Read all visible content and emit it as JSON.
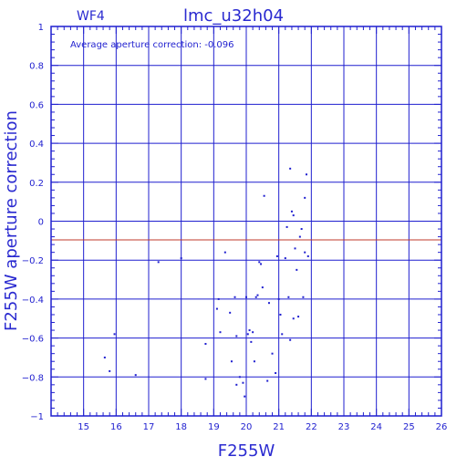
{
  "chart_data": {
    "type": "scatter",
    "title": "lmc_u32h04",
    "panel_label": "WF4",
    "annotation": "Average aperture correction: -0.096",
    "xlabel": "F255W",
    "ylabel": "F255W aperture correction",
    "xlim": [
      14,
      26
    ],
    "ylim": [
      -1,
      1
    ],
    "x_ticks": [
      15,
      16,
      17,
      18,
      19,
      20,
      21,
      22,
      23,
      24,
      25,
      26
    ],
    "y_ticks": [
      -1,
      -0.8,
      -0.6,
      -0.4,
      -0.2,
      0,
      0.2,
      0.4,
      0.6,
      0.8,
      1
    ],
    "grid": true,
    "reference_line": {
      "y": -0.096,
      "color": "#c0392b"
    },
    "colors": {
      "axes": "#1f1fcf",
      "grid": "#1f1fcf",
      "points": "#1f1fcf"
    },
    "points": [
      {
        "x": 15.65,
        "y": -0.7
      },
      {
        "x": 15.8,
        "y": -0.77
      },
      {
        "x": 15.95,
        "y": -0.58
      },
      {
        "x": 16.6,
        "y": -0.79
      },
      {
        "x": 17.3,
        "y": -0.21
      },
      {
        "x": 18.0,
        "y": -0.19
      },
      {
        "x": 18.75,
        "y": -0.63
      },
      {
        "x": 18.75,
        "y": -0.81
      },
      {
        "x": 19.1,
        "y": -0.45
      },
      {
        "x": 19.15,
        "y": -0.4
      },
      {
        "x": 19.2,
        "y": -0.57
      },
      {
        "x": 19.35,
        "y": -0.16
      },
      {
        "x": 19.5,
        "y": -0.47
      },
      {
        "x": 19.55,
        "y": -0.72
      },
      {
        "x": 19.65,
        "y": -0.39
      },
      {
        "x": 19.7,
        "y": -0.59
      },
      {
        "x": 19.7,
        "y": -0.84
      },
      {
        "x": 19.8,
        "y": -0.8
      },
      {
        "x": 19.9,
        "y": -0.83
      },
      {
        "x": 19.95,
        "y": -0.9
      },
      {
        "x": 20.0,
        "y": -0.39
      },
      {
        "x": 20.05,
        "y": -0.58
      },
      {
        "x": 20.1,
        "y": -0.56
      },
      {
        "x": 20.15,
        "y": -0.62
      },
      {
        "x": 20.2,
        "y": -0.57
      },
      {
        "x": 20.25,
        "y": -0.72
      },
      {
        "x": 20.3,
        "y": -0.39
      },
      {
        "x": 20.35,
        "y": -0.38
      },
      {
        "x": 20.4,
        "y": -0.21
      },
      {
        "x": 20.45,
        "y": -0.22
      },
      {
        "x": 20.5,
        "y": -0.34
      },
      {
        "x": 20.55,
        "y": 0.13
      },
      {
        "x": 20.65,
        "y": -0.82
      },
      {
        "x": 20.7,
        "y": -0.42
      },
      {
        "x": 20.8,
        "y": -0.68
      },
      {
        "x": 20.9,
        "y": -0.78
      },
      {
        "x": 20.95,
        "y": -0.18
      },
      {
        "x": 21.0,
        "y": -0.4
      },
      {
        "x": 21.05,
        "y": -0.48
      },
      {
        "x": 21.1,
        "y": -0.58
      },
      {
        "x": 21.2,
        "y": -0.19
      },
      {
        "x": 21.25,
        "y": -0.03
      },
      {
        "x": 21.3,
        "y": -0.39
      },
      {
        "x": 21.35,
        "y": 0.27
      },
      {
        "x": 21.35,
        "y": -0.61
      },
      {
        "x": 21.4,
        "y": 0.05
      },
      {
        "x": 21.45,
        "y": 0.03
      },
      {
        "x": 21.45,
        "y": -0.5
      },
      {
        "x": 21.5,
        "y": -0.14
      },
      {
        "x": 21.55,
        "y": -0.25
      },
      {
        "x": 21.6,
        "y": -0.49
      },
      {
        "x": 21.65,
        "y": -0.08
      },
      {
        "x": 21.7,
        "y": -0.04
      },
      {
        "x": 21.75,
        "y": -0.39
      },
      {
        "x": 21.8,
        "y": 0.12
      },
      {
        "x": 21.8,
        "y": -0.16
      },
      {
        "x": 21.85,
        "y": 0.24
      },
      {
        "x": 21.9,
        "y": -0.18
      }
    ]
  }
}
